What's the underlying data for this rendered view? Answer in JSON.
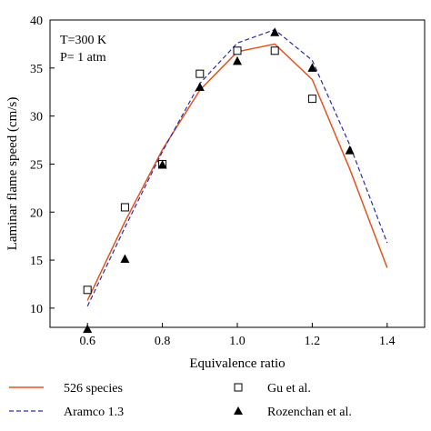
{
  "chart_data": {
    "type": "line",
    "xlabel": "Equivalence ratio",
    "ylabel": "Laminar flame speed (cm/s)",
    "xlim": [
      0.5,
      1.5
    ],
    "ylim": [
      8,
      40
    ],
    "xticks": [
      0.6,
      0.8,
      1.0,
      1.2,
      1.4
    ],
    "xtick_labels": [
      "0.6",
      "0.8",
      "1.0",
      "1.2",
      "1.4"
    ],
    "yticks": [
      10,
      15,
      20,
      25,
      30,
      35,
      40
    ],
    "ytick_labels": [
      "10",
      "15",
      "20",
      "25",
      "30",
      "35",
      "40"
    ],
    "grid": false,
    "annotations": [
      "T=300 K",
      "P= 1 atm"
    ],
    "legend_position": "below",
    "series": [
      {
        "name": "526 species",
        "kind": "line",
        "style": "solid",
        "color": "#e3531f",
        "x": [
          0.6,
          0.7,
          0.8,
          0.9,
          1.0,
          1.1,
          1.2,
          1.3,
          1.4
        ],
        "y": [
          10.8,
          19.0,
          26.5,
          32.7,
          36.7,
          37.5,
          33.8,
          24.5,
          14.2
        ]
      },
      {
        "name": "Aramco 1.3",
        "kind": "line",
        "style": "dashed",
        "color": "#2b2ba8",
        "x": [
          0.6,
          0.7,
          0.8,
          0.9,
          1.0,
          1.1,
          1.2,
          1.3,
          1.4
        ],
        "y": [
          10.2,
          18.4,
          26.3,
          33.4,
          37.6,
          39.0,
          35.8,
          27.0,
          16.8
        ]
      },
      {
        "name": "Gu et al.",
        "kind": "scatter",
        "marker": "open-square",
        "color": "#000000",
        "x": [
          0.6,
          0.7,
          0.8,
          0.9,
          1.0,
          1.1,
          1.2
        ],
        "y": [
          11.9,
          20.5,
          25.0,
          34.4,
          36.8,
          36.8,
          31.8
        ]
      },
      {
        "name": "Rozenchan et al.",
        "kind": "scatter",
        "marker": "filled-triangle",
        "color": "#000000",
        "x": [
          0.6,
          0.7,
          0.8,
          0.9,
          1.0,
          1.1,
          1.2,
          1.3
        ],
        "y": [
          7.8,
          15.1,
          24.9,
          33.0,
          35.7,
          38.7,
          35.0,
          26.4
        ]
      }
    ]
  }
}
